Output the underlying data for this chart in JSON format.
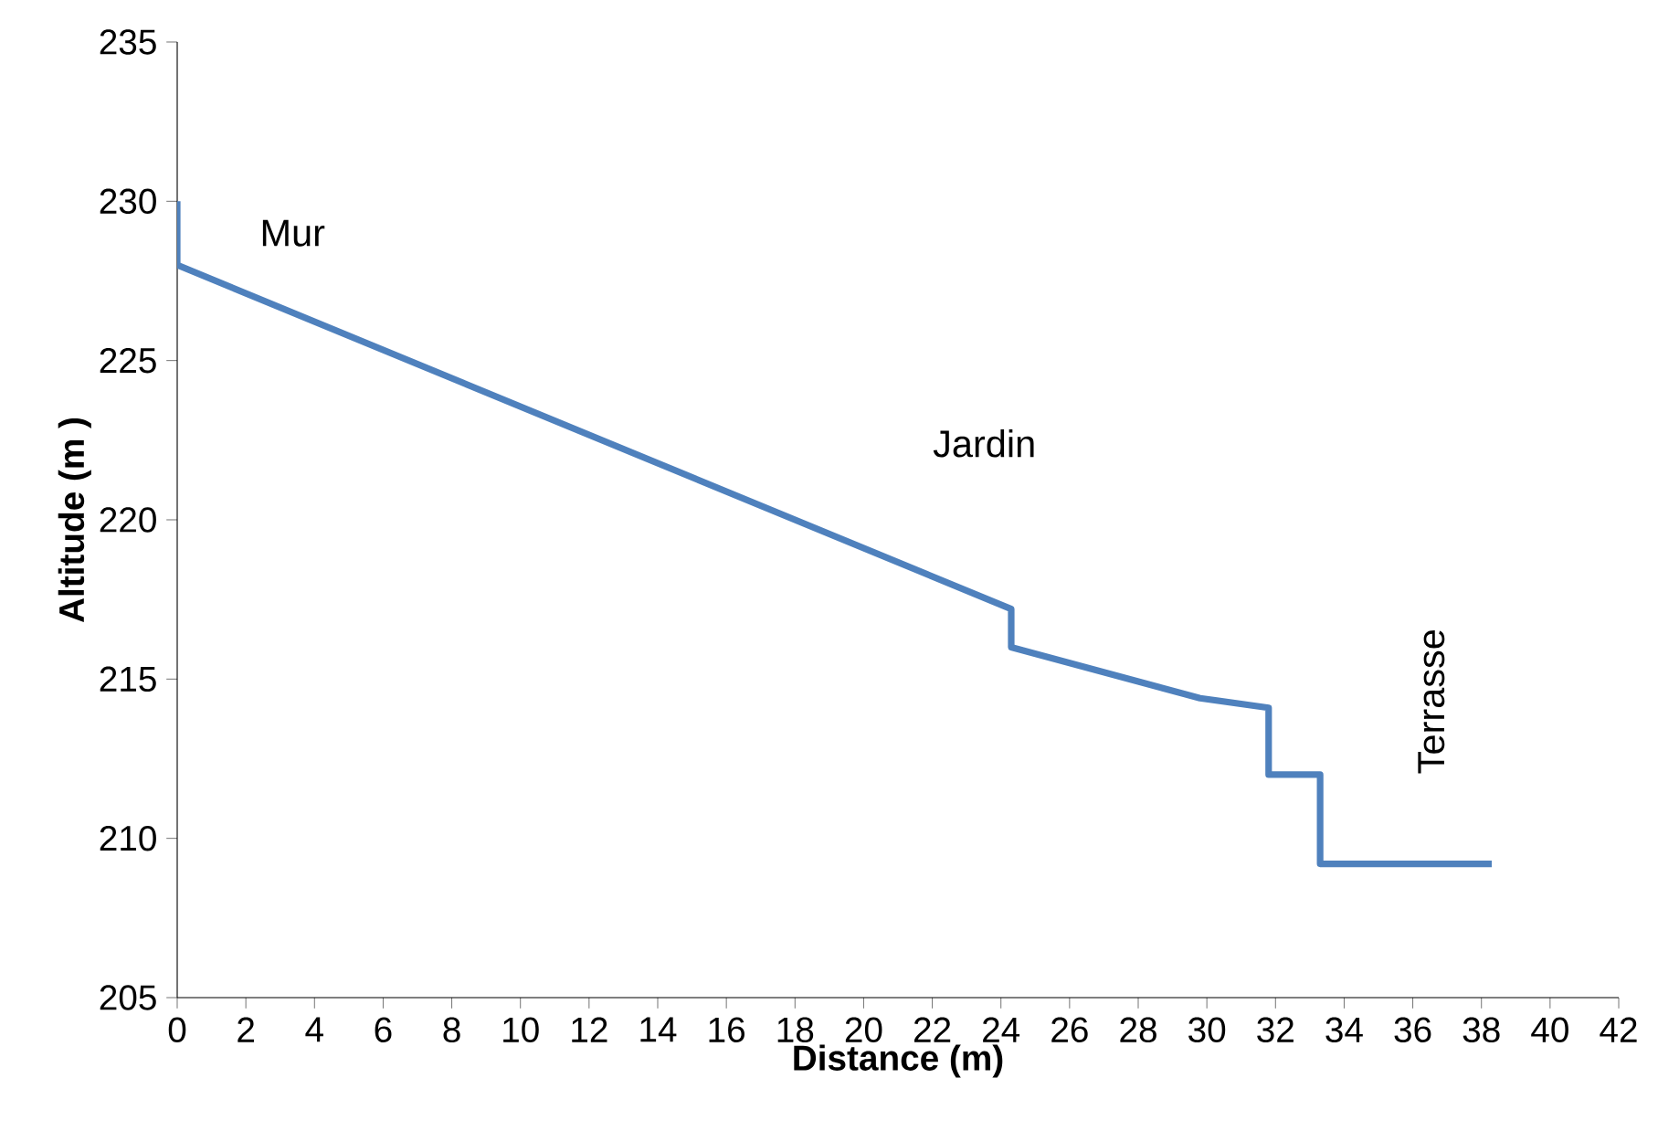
{
  "chart_data": {
    "type": "line",
    "xlabel": "Distance (m)",
    "ylabel": "Altitude (m )",
    "x": [
      0,
      0,
      24.3,
      24.3,
      29.8,
      31.8,
      31.8,
      33.3,
      33.3,
      38.3
    ],
    "series": [
      {
        "color": "#4f81bd",
        "values": [
          230,
          228,
          217.2,
          216,
          214.4,
          214.1,
          212,
          212,
          209.2,
          209.2
        ]
      }
    ],
    "xlim": [
      0,
      42
    ],
    "xticks": [
      0,
      2,
      4,
      6,
      8,
      10,
      12,
      14,
      16,
      18,
      20,
      22,
      24,
      26,
      28,
      30,
      32,
      34,
      36,
      38,
      40,
      42
    ],
    "ylim": [
      205,
      235
    ],
    "yticks": [
      205,
      210,
      215,
      220,
      225,
      230,
      235
    ],
    "grid": false,
    "marker": "none",
    "line_style": "solid",
    "annotations": [
      "Mur",
      "Jardin",
      "Terrasse"
    ]
  }
}
